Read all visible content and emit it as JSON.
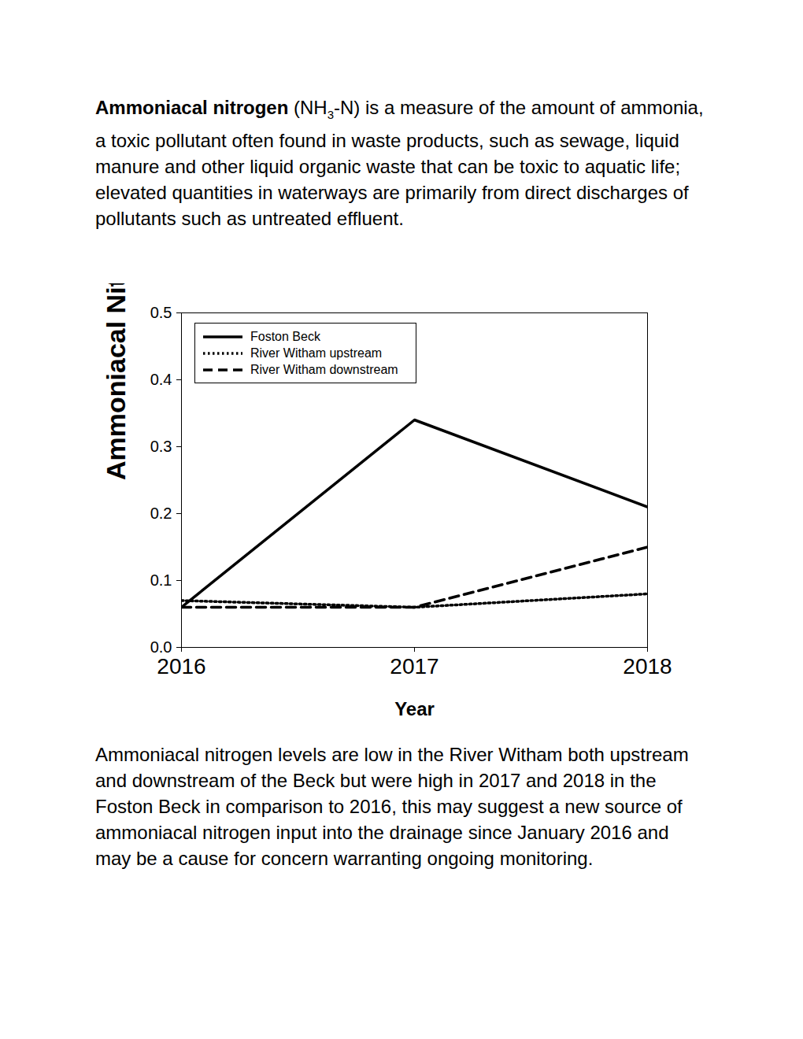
{
  "intro": {
    "term": "Ammoniacal nitrogen",
    "formula": [
      "(NH",
      "3",
      "-N)"
    ],
    "text": "is a measure of the amount of ammonia, a toxic pollutant often found in waste products, such as sewage, liquid manure and other liquid organic waste that can be toxic to aquatic life; elevated quantities in waterways are primarily from direct discharges of pollutants such as untreated effluent."
  },
  "chart_data": {
    "type": "line",
    "x_label": "Year",
    "y_label": "Ammoniacal Nitrogen (mg/l)",
    "x": [
      2016,
      2017,
      2018
    ],
    "series": [
      {
        "name": "Foston Beck",
        "color": "#000000",
        "line_style": "solid",
        "values": [
          0.06,
          0.34,
          0.21
        ]
      },
      {
        "name": "River Witham upstream",
        "color": "#000000",
        "line_style": "dotted",
        "values": [
          0.07,
          0.06,
          0.08
        ]
      },
      {
        "name": "River Witham downstream",
        "color": "#000000",
        "line_style": "dashed",
        "values": [
          0.06,
          0.06,
          0.15
        ]
      }
    ],
    "xlim": [
      2016,
      2018
    ],
    "xticks": [
      2016,
      2017,
      2018
    ],
    "ylim": [
      0,
      0.5
    ],
    "yticks": [
      {
        "value": 0,
        "label": "0.0"
      },
      0.1,
      0.2,
      0.3,
      0.4,
      0.5
    ],
    "legend": "upper left",
    "grid": false
  },
  "conclusion": "Ammoniacal nitrogen levels are low in the River Witham both upstream and downstream of the Beck but were high in 2017 and 2018 in the Foston Beck in comparison to 2016, this may suggest a new source of ammoniacal nitrogen input into the drainage since January 2016 and may be a cause for concern warranting ongoing monitoring."
}
